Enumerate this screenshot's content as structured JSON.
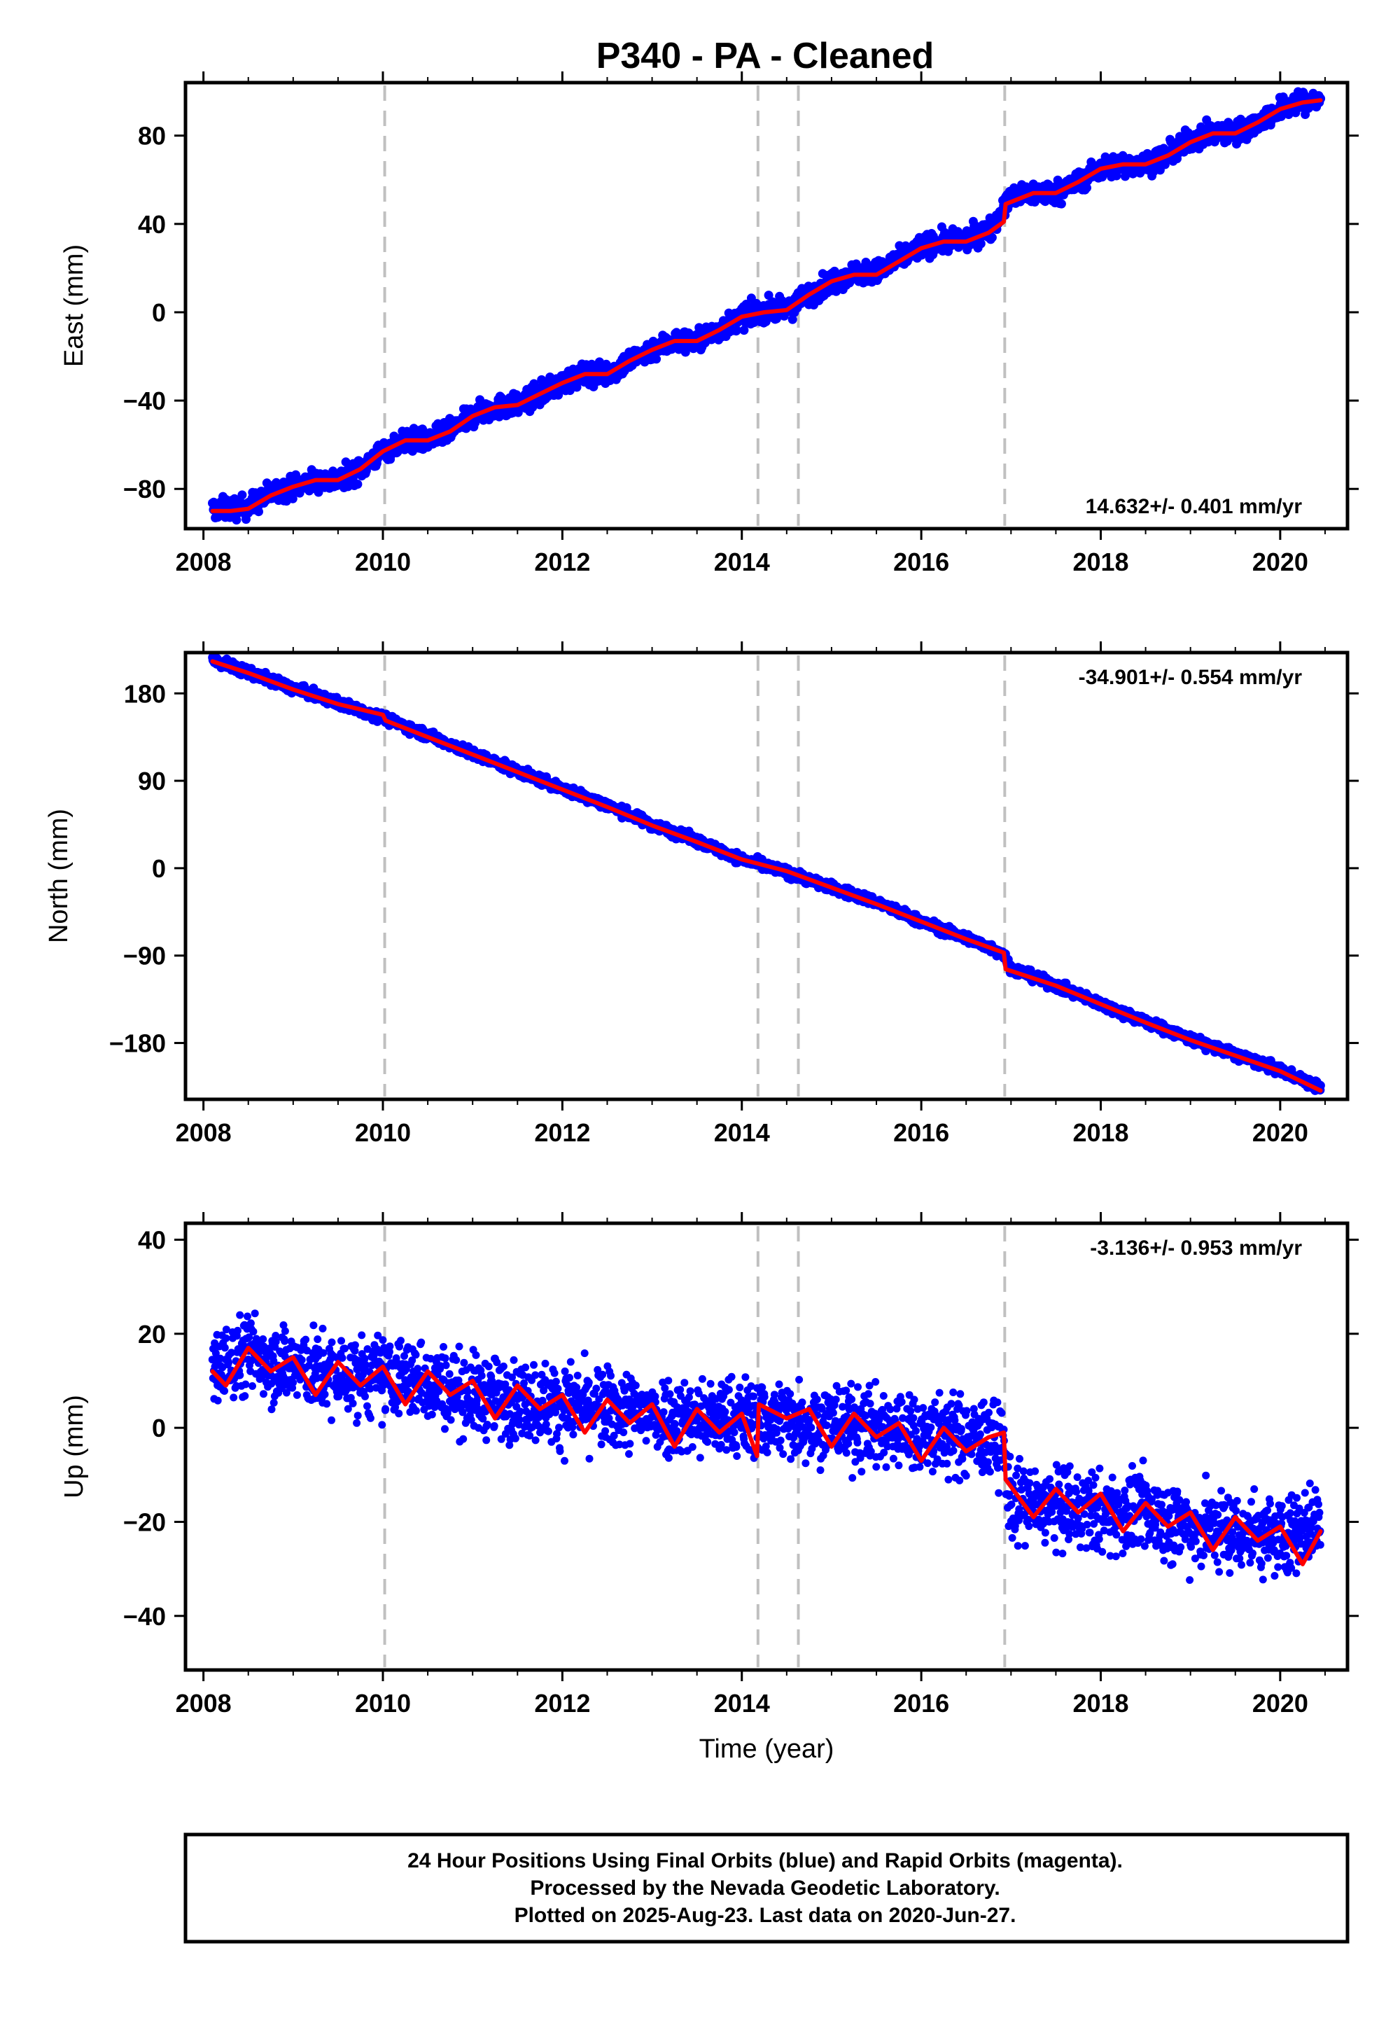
{
  "title": "P340  - PA - Cleaned",
  "footer": {
    "lines": [
      "24 Hour Positions Using Final Orbits (blue) and Rapid Orbits (magenta).",
      "Processed by the Nevada Geodetic Laboratory.",
      "Plotted on 2025-Aug-23. Last data on 2020-Jun-27."
    ]
  },
  "colors": {
    "observations": "#0000ff",
    "model": "#ff0000",
    "event_lines": "#c0c0c0",
    "axes": "#000000"
  },
  "chart_data": [
    {
      "type": "scatter",
      "panel": "east",
      "ylabel": "East (mm)",
      "xlabel": "",
      "xlim": [
        2007.8,
        2020.75
      ],
      "ylim": [
        -98,
        104
      ],
      "xticks": [
        2008,
        2010,
        2012,
        2014,
        2016,
        2018,
        2020
      ],
      "yticks": [
        -80,
        -40,
        0,
        40,
        80
      ],
      "rate_label": "14.632+/- 0.401 mm/yr",
      "rate_position": "bottom-right",
      "event_lines_x": [
        2010.02,
        2014.18,
        2014.63,
        2016.93
      ],
      "series": [
        {
          "kind": "observations",
          "x": [
            2008.1,
            2008.3,
            2008.5,
            2008.75,
            2009.0,
            2009.25,
            2009.5,
            2009.75,
            2010.0,
            2010.25,
            2010.5,
            2010.75,
            2011.0,
            2011.25,
            2011.5,
            2011.75,
            2012.0,
            2012.25,
            2012.5,
            2012.75,
            2013.0,
            2013.25,
            2013.5,
            2013.75,
            2014.0,
            2014.25,
            2014.5,
            2014.75,
            2015.0,
            2015.25,
            2015.5,
            2015.75,
            2016.0,
            2016.25,
            2016.5,
            2016.75,
            2017.0,
            2017.25,
            2017.5,
            2017.75,
            2018.0,
            2018.25,
            2018.5,
            2018.75,
            2019.0,
            2019.25,
            2019.5,
            2019.75,
            2020.0,
            2020.25,
            2020.45
          ],
          "y": [
            -89,
            -89,
            -88,
            -82,
            -79,
            -76,
            -76,
            -71,
            -63,
            -58,
            -58,
            -54,
            -47,
            -43,
            -42,
            -37,
            -32,
            -28,
            -28,
            -22,
            -17,
            -13,
            -13,
            -8,
            -2,
            1,
            1,
            8,
            14,
            18,
            18,
            24,
            30,
            32,
            33,
            37,
            52,
            54,
            54,
            59,
            65,
            67,
            67,
            71,
            78,
            81,
            81,
            86,
            92,
            95,
            96
          ],
          "spread": 3.5
        },
        {
          "kind": "model",
          "x": [
            2008.1,
            2008.3,
            2008.5,
            2008.75,
            2009.0,
            2009.25,
            2009.5,
            2009.75,
            2010.0,
            2010.25,
            2010.5,
            2010.75,
            2011.0,
            2011.25,
            2011.5,
            2011.75,
            2012.0,
            2012.25,
            2012.5,
            2012.75,
            2013.0,
            2013.25,
            2013.5,
            2013.75,
            2014.0,
            2014.25,
            2014.5,
            2014.75,
            2015.0,
            2015.25,
            2015.5,
            2015.75,
            2016.0,
            2016.25,
            2016.5,
            2016.75,
            2016.92,
            2016.94,
            2017.25,
            2017.5,
            2017.75,
            2018.0,
            2018.25,
            2018.5,
            2018.75,
            2019.0,
            2019.25,
            2019.5,
            2019.75,
            2020.0,
            2020.25,
            2020.45
          ],
          "y": [
            -90,
            -90,
            -89,
            -83,
            -79,
            -76,
            -76,
            -71,
            -63,
            -58,
            -58,
            -54,
            -47,
            -43,
            -42,
            -37,
            -32,
            -28,
            -28,
            -22,
            -17,
            -13,
            -13,
            -8,
            -2,
            0,
            1,
            8,
            14,
            17,
            17,
            23,
            29,
            32,
            32,
            36,
            41,
            49,
            54,
            54,
            59,
            65,
            67,
            67,
            71,
            77,
            81,
            81,
            86,
            92,
            95,
            96
          ]
        }
      ]
    },
    {
      "type": "scatter",
      "panel": "north",
      "ylabel": "North (mm)",
      "xlabel": "",
      "xlim": [
        2007.8,
        2020.75
      ],
      "ylim": [
        -238,
        222
      ],
      "xticks": [
        2008,
        2010,
        2012,
        2014,
        2016,
        2018,
        2020
      ],
      "yticks": [
        -180,
        -90,
        0,
        90,
        180
      ],
      "rate_label": "-34.901+/- 0.554 mm/yr",
      "rate_position": "top-right",
      "event_lines_x": [
        2010.02,
        2014.18,
        2014.63,
        2016.93
      ],
      "series": [
        {
          "kind": "observations",
          "x": [
            2008.1,
            2008.5,
            2009.0,
            2009.5,
            2010.0,
            2010.5,
            2011.0,
            2011.5,
            2012.0,
            2012.5,
            2013.0,
            2013.5,
            2014.0,
            2014.5,
            2015.0,
            2015.5,
            2016.0,
            2016.5,
            2016.9,
            2017.0,
            2017.5,
            2018.0,
            2018.5,
            2019.0,
            2019.5,
            2020.0,
            2020.45
          ],
          "y": [
            214,
            202,
            185,
            170,
            155,
            137,
            118,
            100,
            82,
            65,
            45,
            28,
            9,
            -4,
            -20,
            -35,
            -55,
            -72,
            -87,
            -103,
            -121,
            -140,
            -158,
            -176,
            -192,
            -208,
            -226
          ],
          "spread": 3.5
        },
        {
          "kind": "model",
          "x": [
            2008.1,
            2008.5,
            2009.0,
            2009.5,
            2010.0,
            2010.03,
            2010.5,
            2011.0,
            2011.5,
            2012.0,
            2012.5,
            2013.0,
            2013.5,
            2014.0,
            2014.5,
            2015.0,
            2015.5,
            2016.0,
            2016.5,
            2016.92,
            2016.94,
            2017.5,
            2018.0,
            2018.5,
            2019.0,
            2019.5,
            2020.0,
            2020.45
          ],
          "y": [
            213,
            201,
            184,
            169,
            158,
            152,
            135,
            117,
            99,
            81,
            63,
            44,
            27,
            9,
            -3,
            -20,
            -37,
            -55,
            -73,
            -87,
            -104,
            -121,
            -140,
            -159,
            -177,
            -193,
            -209,
            -229
          ]
        }
      ]
    },
    {
      "type": "scatter",
      "panel": "up",
      "ylabel": "Up (mm)",
      "xlabel": "Time (year)",
      "xlim": [
        2007.8,
        2020.75
      ],
      "ylim": [
        -51.5,
        43.5
      ],
      "xticks": [
        2008,
        2010,
        2012,
        2014,
        2016,
        2018,
        2020
      ],
      "yticks": [
        -40,
        -20,
        0,
        20,
        40
      ],
      "rate_label": "-3.136+/- 0.953 mm/yr",
      "rate_position": "top-right",
      "event_lines_x": [
        2010.02,
        2014.18,
        2014.63,
        2016.93
      ],
      "series": [
        {
          "kind": "observations",
          "x": [
            2008.1,
            2008.5,
            2009.0,
            2009.5,
            2010.0,
            2010.5,
            2011.0,
            2011.5,
            2012.0,
            2012.5,
            2013.0,
            2013.5,
            2014.0,
            2014.5,
            2015.0,
            2015.5,
            2016.0,
            2016.5,
            2016.9,
            2017.0,
            2017.5,
            2018.0,
            2018.5,
            2019.0,
            2019.5,
            2020.0,
            2020.45
          ],
          "y": [
            12,
            16,
            13,
            11,
            11,
            10,
            7,
            6,
            5,
            4,
            3,
            2,
            2,
            2,
            1,
            0,
            -1,
            -2,
            -3,
            -16,
            -17,
            -18,
            -18,
            -21,
            -22,
            -23,
            -20
          ],
          "spread": 6
        },
        {
          "kind": "model",
          "x": [
            2008.1,
            2008.25,
            2008.5,
            2008.75,
            2009.0,
            2009.25,
            2009.5,
            2009.75,
            2010.0,
            2010.25,
            2010.5,
            2010.75,
            2011.0,
            2011.25,
            2011.5,
            2011.75,
            2012.0,
            2012.25,
            2012.5,
            2012.75,
            2013.0,
            2013.25,
            2013.5,
            2013.75,
            2014.0,
            2014.17,
            2014.19,
            2014.5,
            2014.75,
            2015.0,
            2015.25,
            2015.5,
            2015.75,
            2016.0,
            2016.25,
            2016.5,
            2016.75,
            2016.92,
            2016.94,
            2017.25,
            2017.5,
            2017.75,
            2018.0,
            2018.25,
            2018.5,
            2018.75,
            2019.0,
            2019.25,
            2019.5,
            2019.75,
            2020.0,
            2020.25,
            2020.45
          ],
          "y": [
            12,
            9,
            17,
            12,
            15,
            7,
            14,
            9,
            13,
            5,
            12,
            7,
            10,
            2,
            9,
            4,
            7,
            -1,
            6,
            1,
            5,
            -4,
            4,
            -1,
            3,
            -6,
            5,
            2,
            4,
            -4,
            3,
            -2,
            1,
            -7,
            0,
            -5,
            -2,
            -1,
            -11,
            -19,
            -13,
            -18,
            -14,
            -22,
            -16,
            -21,
            -18,
            -26,
            -19,
            -24,
            -21,
            -29,
            -22
          ]
        }
      ]
    }
  ]
}
